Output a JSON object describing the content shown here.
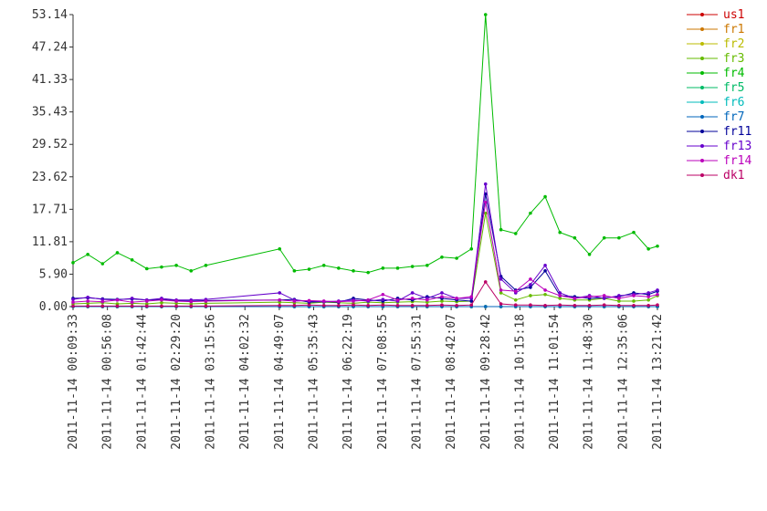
{
  "chart_data": {
    "type": "line",
    "xlim": [
      "2011-11-14 00:09:33",
      "2011-11-14 13:21:42"
    ],
    "xticks": [
      "2011-11-14 00:09:33",
      "2011-11-14 00:56:08",
      "2011-11-14 01:42:44",
      "2011-11-14 02:29:20",
      "2011-11-14 03:15:56",
      "2011-11-14 04:02:32",
      "2011-11-14 04:49:07",
      "2011-11-14 05:35:43",
      "2011-11-14 06:22:19",
      "2011-11-14 07:08:55",
      "2011-11-14 07:55:31",
      "2011-11-14 08:42:07",
      "2011-11-14 09:28:42",
      "2011-11-14 10:15:18",
      "2011-11-14 11:01:54",
      "2011-11-14 11:48:30",
      "2011-11-14 12:35:06",
      "2011-11-14 13:21:42"
    ],
    "ylim": [
      0,
      53.14
    ],
    "yticks": [
      {
        "value": 0,
        "label": "0.00"
      },
      {
        "value": 5.9,
        "label": "5.90"
      },
      11.81,
      17.71,
      23.62,
      29.52,
      35.43,
      41.33,
      47.24,
      53.14
    ],
    "legend": "right",
    "x": [
      "2011-11-14 00:09:33",
      "2011-11-14 00:29:33",
      "2011-11-14 00:49:33",
      "2011-11-14 01:09:33",
      "2011-11-14 01:29:33",
      "2011-11-14 01:49:33",
      "2011-11-14 02:09:33",
      "2011-11-14 02:29:33",
      "2011-11-14 02:49:33",
      "2011-11-14 03:09:33",
      "2011-11-14 04:49:33",
      "2011-11-14 05:09:33",
      "2011-11-14 05:29:33",
      "2011-11-14 05:49:33",
      "2011-11-14 06:09:33",
      "2011-11-14 06:29:33",
      "2011-11-14 06:49:33",
      "2011-11-14 07:09:33",
      "2011-11-14 07:29:33",
      "2011-11-14 07:49:33",
      "2011-11-14 08:09:33",
      "2011-11-14 08:29:33",
      "2011-11-14 08:49:33",
      "2011-11-14 09:09:33",
      "2011-11-14 09:28:42",
      "2011-11-14 09:49:33",
      "2011-11-14 10:09:33",
      "2011-11-14 10:29:33",
      "2011-11-14 10:49:33",
      "2011-11-14 11:09:33",
      "2011-11-14 11:29:33",
      "2011-11-14 11:49:33",
      "2011-11-14 12:09:33",
      "2011-11-14 12:29:33",
      "2011-11-14 12:49:33",
      "2011-11-14 13:09:33",
      "2011-11-14 13:21:42"
    ],
    "series": [
      {
        "name": "us1",
        "color": "#cc0000",
        "values": [
          0,
          0,
          0,
          0,
          0,
          0,
          0,
          0,
          0,
          0,
          0,
          0,
          0,
          0,
          0,
          0,
          0,
          0,
          0,
          0,
          0,
          0,
          0,
          0,
          0,
          0,
          0,
          0,
          0,
          0,
          0,
          0,
          0,
          0,
          0,
          0,
          0
        ]
      },
      {
        "name": "fr1",
        "color": "#cc7700",
        "values": [
          0,
          0,
          0,
          0,
          0,
          0,
          0,
          0,
          0,
          0,
          0,
          0,
          0,
          0,
          0,
          0,
          0,
          0,
          0,
          0,
          0,
          0,
          0,
          0,
          0,
          0,
          0,
          0,
          0,
          0,
          0,
          0,
          0,
          0,
          0,
          0,
          0
        ]
      },
      {
        "name": "fr2",
        "color": "#bbbb00",
        "values": [
          0,
          0,
          0,
          0,
          0,
          0,
          0,
          0,
          0,
          0,
          0,
          0,
          0,
          0,
          0,
          0,
          0,
          0,
          0,
          0,
          0,
          0,
          0,
          0,
          0,
          0,
          0,
          0,
          0,
          0,
          0,
          0,
          0,
          0,
          0,
          0,
          0
        ]
      },
      {
        "name": "fr3",
        "color": "#66bb00",
        "values": [
          0.5,
          0.6,
          0.7,
          0.5,
          0.6,
          0.5,
          0.7,
          0.6,
          0.5,
          0.6,
          0.8,
          0.7,
          0.6,
          0.8,
          0.7,
          0.6,
          0.8,
          0.7,
          0.8,
          0.9,
          0.8,
          1,
          0.9,
          1,
          17,
          2.5,
          1.2,
          2,
          2.2,
          1.5,
          1.2,
          1.2,
          1.5,
          1,
          1,
          1.2,
          2
        ]
      },
      {
        "name": "fr4",
        "color": "#00bb00",
        "values": [
          8,
          9.5,
          7.8,
          9.8,
          8.5,
          6.9,
          7.2,
          7.5,
          6.5,
          7.5,
          10.5,
          6.5,
          6.8,
          7.5,
          7,
          6.5,
          6.2,
          7,
          7,
          7.3,
          7.5,
          9,
          8.8,
          10.5,
          53.14,
          14,
          13.3,
          17,
          20,
          13.5,
          12.5,
          9.5,
          12.5,
          12.5,
          13.5,
          10.5,
          11
        ]
      },
      {
        "name": "fr5",
        "color": "#00bb66",
        "values": [
          0,
          0,
          0,
          0,
          0,
          0,
          0,
          0,
          0,
          0,
          0,
          0,
          0,
          0,
          0,
          0,
          0,
          0,
          0,
          0,
          0,
          0,
          0,
          0,
          0,
          0,
          0,
          0,
          0,
          0,
          0,
          0,
          0,
          0,
          0,
          0,
          0
        ]
      },
      {
        "name": "fr6",
        "color": "#00bbbb",
        "values": [
          0,
          0,
          0,
          0,
          0,
          0,
          0,
          0,
          0,
          0,
          0,
          0,
          0,
          0,
          0,
          0,
          0,
          0,
          0,
          0,
          0,
          0,
          0,
          0,
          0,
          0,
          0,
          0,
          0,
          0,
          0,
          0,
          0,
          0,
          0,
          0,
          0
        ]
      },
      {
        "name": "fr7",
        "color": "#0066bb",
        "values": [
          0,
          0,
          0,
          0,
          0,
          0,
          0,
          0,
          0,
          0,
          0,
          0,
          0,
          0,
          0,
          0,
          0,
          0,
          0,
          0,
          0,
          0,
          0,
          0,
          0,
          0,
          0,
          0,
          0,
          0,
          0,
          0,
          0,
          0,
          0,
          0,
          0
        ]
      },
      {
        "name": "fr11",
        "color": "#000099",
        "values": [
          1.5,
          1.6,
          1.4,
          1.3,
          1.4,
          1.2,
          1.3,
          1.1,
          1,
          1.1,
          1.2,
          1.3,
          0.8,
          0.9,
          0.8,
          1.5,
          1.2,
          1,
          1.5,
          1.2,
          1.8,
          1.5,
          1.2,
          1,
          20.5,
          5.5,
          3,
          3.5,
          6.5,
          2,
          1.8,
          1.5,
          1.6,
          1.8,
          2.5,
          2.2,
          2.8
        ]
      },
      {
        "name": "fr13",
        "color": "#6600cc",
        "values": [
          1.3,
          1.7,
          1.3,
          1.2,
          1.5,
          1.2,
          1.5,
          1.2,
          1.2,
          1.3,
          2.5,
          1.2,
          1,
          0.9,
          1,
          1.2,
          1,
          1.3,
          1,
          2.5,
          1.5,
          2.5,
          1.5,
          1.5,
          22.3,
          5,
          2.5,
          4,
          7.5,
          2.5,
          1.5,
          2,
          1.5,
          2,
          2.2,
          2.5,
          3
        ]
      },
      {
        "name": "fr14",
        "color": "#bb00bb",
        "values": [
          0.8,
          1,
          0.9,
          1.2,
          0.8,
          1,
          1.2,
          1,
          0.9,
          1,
          1.2,
          1,
          1.1,
          1,
          0.9,
          1,
          1.2,
          2.2,
          1.2,
          1.5,
          1.2,
          1.8,
          1.5,
          1.8,
          19,
          3,
          2.8,
          5,
          3,
          2,
          1.5,
          1.8,
          2,
          1.5,
          2,
          1.8,
          2.2
        ]
      },
      {
        "name": "dk1",
        "color": "#bb0066",
        "values": [
          0.1,
          0.1,
          0.1,
          0.1,
          0.1,
          0.1,
          0.1,
          0.1,
          0.1,
          0.1,
          0.2,
          0.2,
          0.3,
          0.2,
          0.2,
          0.3,
          0.2,
          0.3,
          0.2,
          0.2,
          0.2,
          0.3,
          0.2,
          0.3,
          4.5,
          0.5,
          0.3,
          0.3,
          0.2,
          0.3,
          0.2,
          0.2,
          0.3,
          0.2,
          0.2,
          0.2,
          0.3
        ]
      }
    ]
  }
}
